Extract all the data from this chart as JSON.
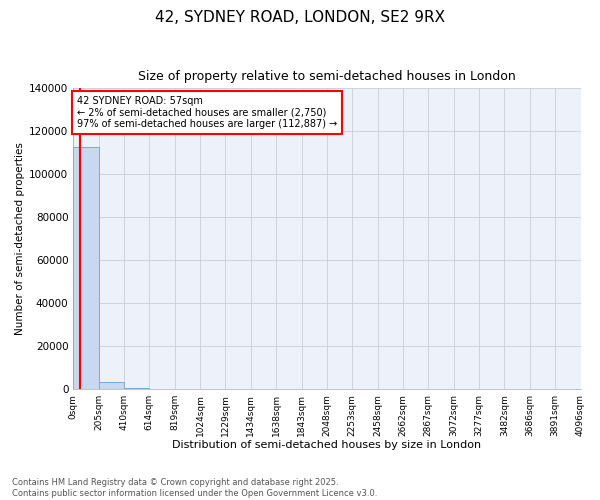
{
  "title": "42, SYDNEY ROAD, LONDON, SE2 9RX",
  "subtitle": "Size of property relative to semi-detached houses in London",
  "xlabel": "Distribution of semi-detached houses by size in London",
  "ylabel": "Number of semi-detached properties",
  "bar_color": "#c8d8ee",
  "bar_edge_color": "#7aabcf",
  "annotation_text": "42 SYDNEY ROAD: 57sqm\n← 2% of semi-detached houses are smaller (2,750)\n97% of semi-detached houses are larger (112,887) →",
  "annotation_box_color": "white",
  "annotation_box_edge_color": "red",
  "vline_color": "red",
  "footer_text": "Contains HM Land Registry data © Crown copyright and database right 2025.\nContains public sector information licensed under the Open Government Licence v3.0.",
  "bin_edges": [
    0,
    205,
    410,
    614,
    819,
    1024,
    1229,
    1434,
    1638,
    1843,
    2048,
    2253,
    2458,
    2662,
    2867,
    3072,
    3277,
    3482,
    3686,
    3891,
    4096
  ],
  "bin_labels": [
    "0sqm",
    "205sqm",
    "410sqm",
    "614sqm",
    "819sqm",
    "1024sqm",
    "1229sqm",
    "1434sqm",
    "1638sqm",
    "1843sqm",
    "2048sqm",
    "2253sqm",
    "2458sqm",
    "2662sqm",
    "2867sqm",
    "3072sqm",
    "3277sqm",
    "3482sqm",
    "3686sqm",
    "3891sqm",
    "4096sqm"
  ],
  "counts": [
    112887,
    3000,
    300,
    100,
    40,
    15,
    8,
    4,
    2,
    1,
    1,
    1,
    0,
    0,
    0,
    0,
    0,
    0,
    0,
    0
  ],
  "ylim": [
    0,
    140000
  ],
  "yticks": [
    0,
    20000,
    40000,
    60000,
    80000,
    100000,
    120000,
    140000
  ],
  "background_color": "#edf1f9",
  "grid_color": "#c8cedc",
  "property_sqm": 57,
  "figsize": [
    6.0,
    5.0
  ],
  "dpi": 100
}
